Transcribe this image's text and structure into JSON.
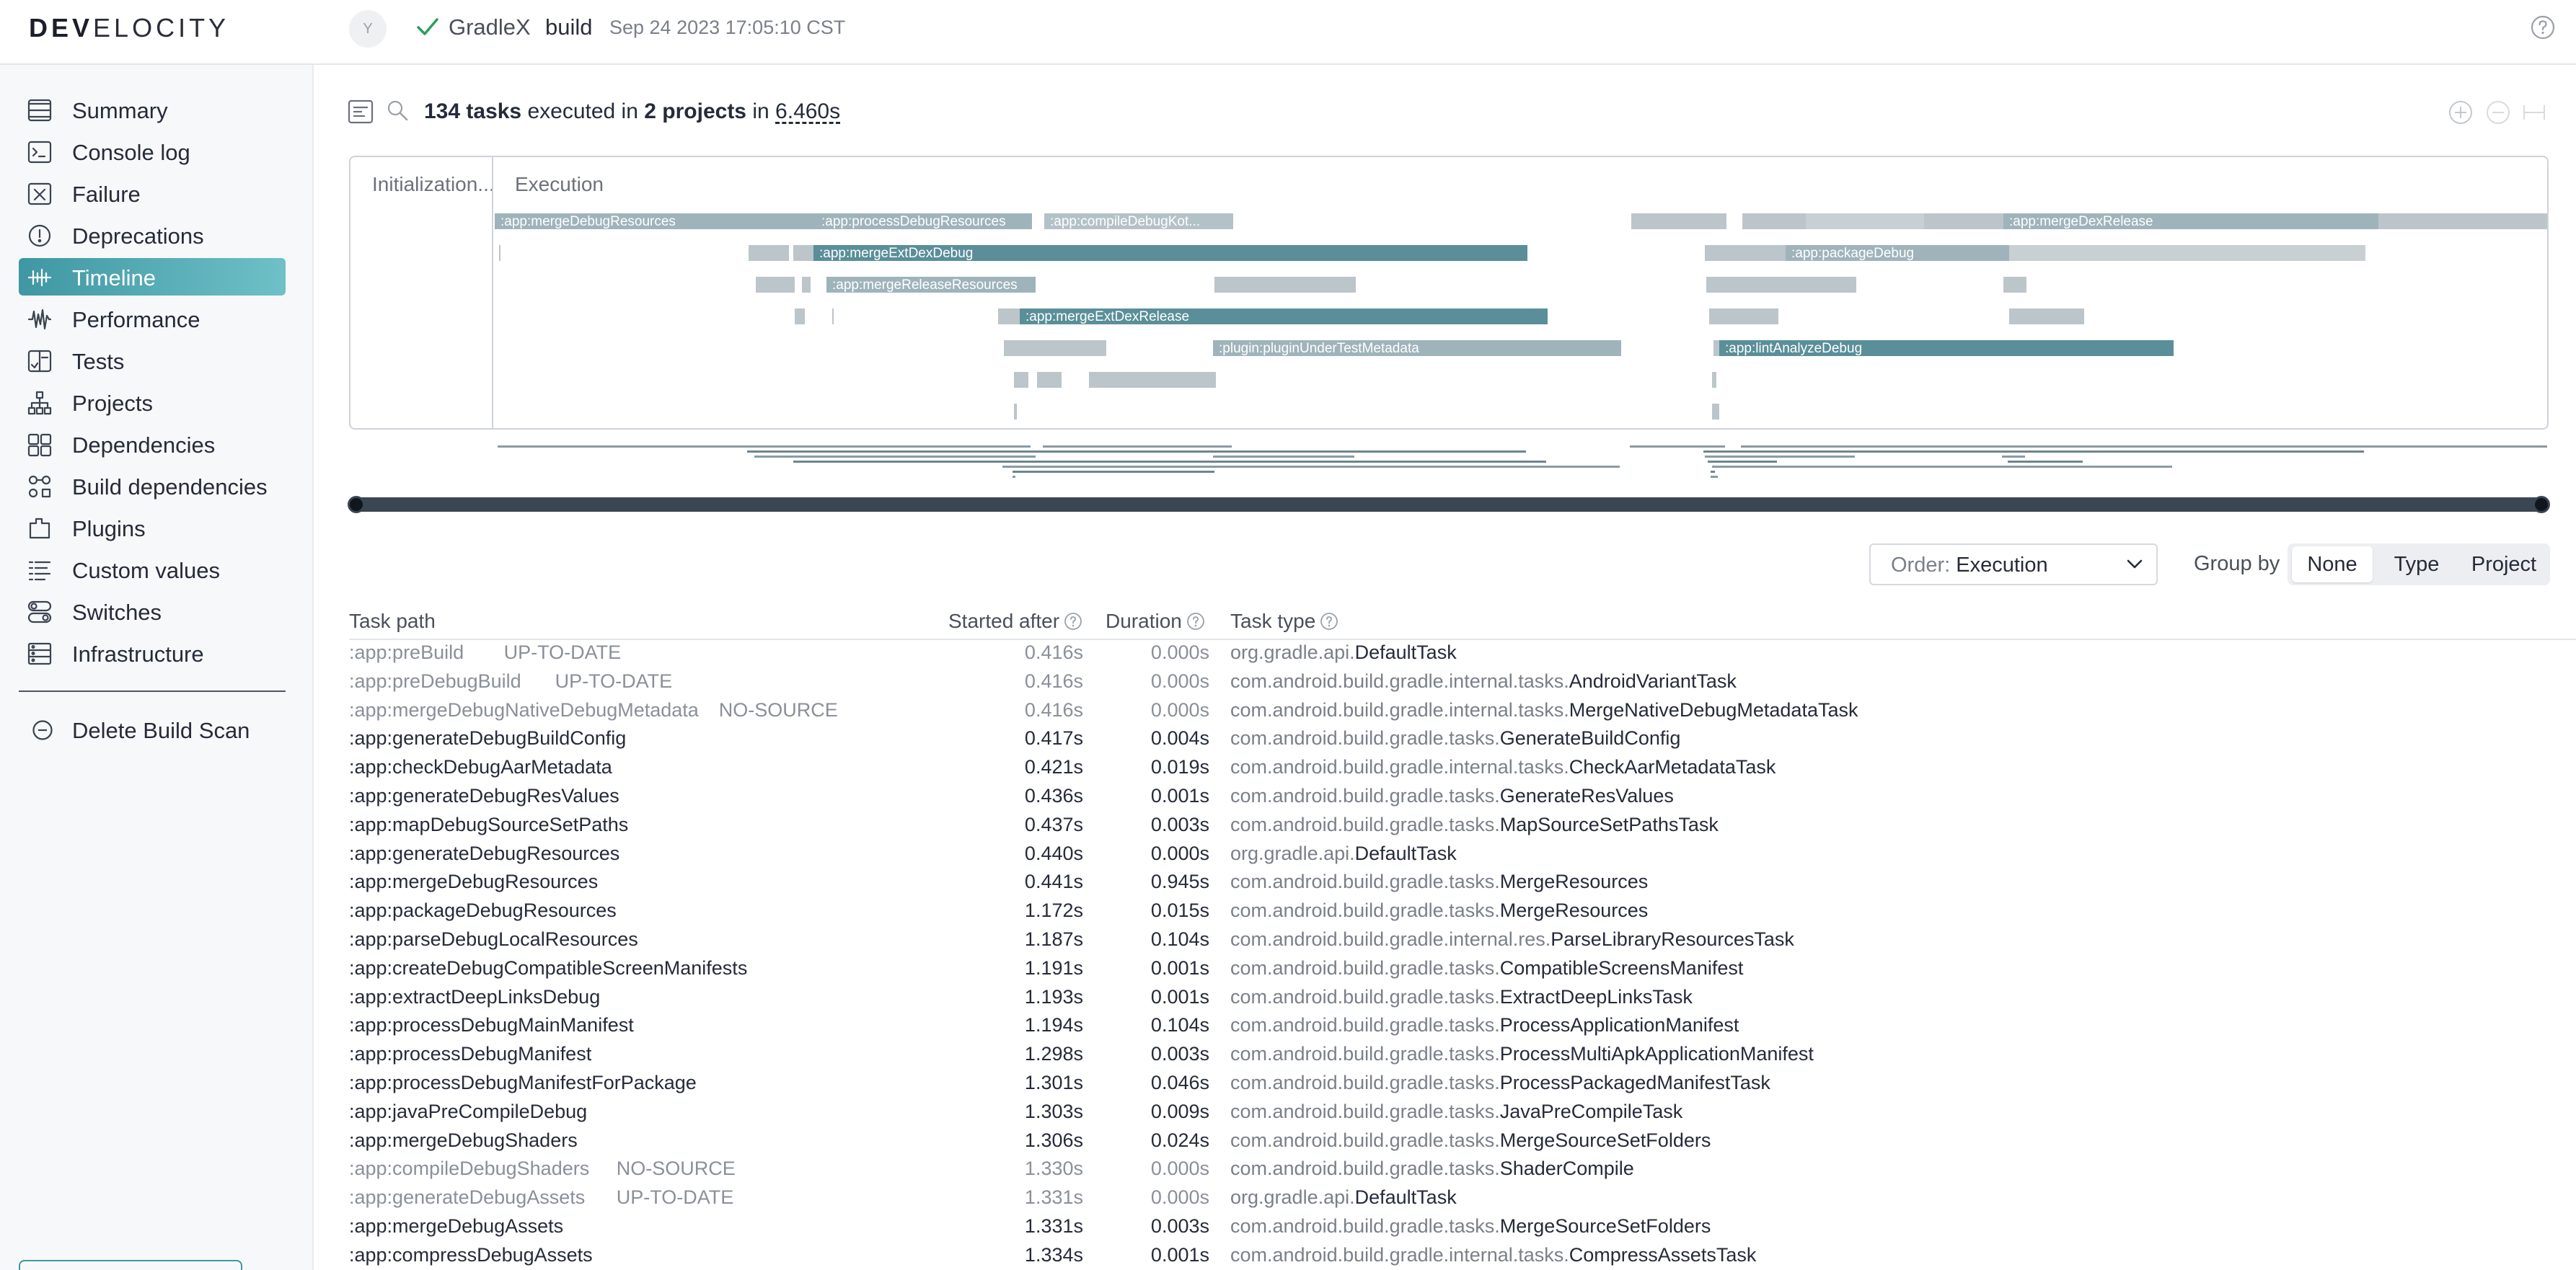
{
  "app": {
    "logo_bold": "DEV",
    "logo_rest": "ELOCITY",
    "avatar_letter": "Y",
    "project": "GradleX",
    "task": "build",
    "timestamp": "Sep 24 2023 17:05:10 CST"
  },
  "colors": {
    "accent": "#3f97a3",
    "accent_light": "#6fc0c7",
    "bar_highlight": "#5a8f99",
    "bar_muted": "#bcc5ca",
    "success": "#2e9e5b"
  },
  "sidebar": {
    "items": [
      {
        "label": "Summary",
        "icon": "summary-lines-icon",
        "active": false
      },
      {
        "label": "Console log",
        "icon": "console-icon",
        "active": false
      },
      {
        "label": "Failure",
        "icon": "failure-x-icon",
        "active": false
      },
      {
        "label": "Deprecations",
        "icon": "deprecation-alert-icon",
        "active": false
      },
      {
        "label": "Timeline",
        "icon": "timeline-icon",
        "active": true
      },
      {
        "label": "Performance",
        "icon": "performance-wave-icon",
        "active": false
      },
      {
        "label": "Tests",
        "icon": "tests-icon",
        "active": false
      },
      {
        "label": "Projects",
        "icon": "projects-tree-icon",
        "active": false
      },
      {
        "label": "Dependencies",
        "icon": "dependencies-icon",
        "active": false
      },
      {
        "label": "Build dependencies",
        "icon": "build-dependencies-icon",
        "active": false
      },
      {
        "label": "Plugins",
        "icon": "plugins-icon",
        "active": false
      },
      {
        "label": "Custom values",
        "icon": "custom-values-icon",
        "active": false
      },
      {
        "label": "Switches",
        "icon": "switches-icon",
        "active": false
      },
      {
        "label": "Infrastructure",
        "icon": "infrastructure-icon",
        "active": false
      }
    ],
    "delete_label": "Delete Build Scan"
  },
  "summary": {
    "task_count": "134 tasks",
    "executed_in": "executed in",
    "project_count": "2 projects",
    "in": "in",
    "duration": "6.460s"
  },
  "timeline": {
    "init_label": "Initialization...",
    "exec_label": "Execution",
    "labels": [
      ":app:mergeDebugResources",
      ":app:processDebugResources",
      ":app:compileDebugKot...",
      ":app:mergeDexRelease",
      ":app:mergeExtDexDebug",
      ":app:packageDebug",
      ":app:mergeReleaseResources",
      ":app:mergeExtDexRelease",
      ":plugin:pluginUnderTestMetadata",
      ":app:lintAnalyzeDebug"
    ]
  },
  "controls": {
    "order_prefix": "Order:",
    "order_value": "Execution",
    "group_by_label": "Group by",
    "group_options": [
      "None",
      "Type",
      "Project"
    ],
    "group_selected": "None"
  },
  "table": {
    "headers": {
      "path": "Task path",
      "started": "Started after",
      "duration": "Duration",
      "type": "Task type"
    },
    "rows": [
      {
        "path": ":app:preBuild",
        "status": "UP-TO-DATE",
        "start": "0.416s",
        "dur": "0.000s",
        "pkg": "org.gradle.api.",
        "cls": "DefaultTask"
      },
      {
        "path": ":app:preDebugBuild",
        "status": "UP-TO-DATE",
        "start": "0.416s",
        "dur": "0.000s",
        "pkg": "com.android.build.gradle.internal.tasks.",
        "cls": "AndroidVariantTask"
      },
      {
        "path": ":app:mergeDebugNativeDebugMetadata",
        "status": "NO-SOURCE",
        "start": "0.416s",
        "dur": "0.000s",
        "pkg": "com.android.build.gradle.internal.tasks.",
        "cls": "MergeNativeDebugMetadataTask"
      },
      {
        "path": ":app:generateDebugBuildConfig",
        "status": "",
        "start": "0.417s",
        "dur": "0.004s",
        "pkg": "com.android.build.gradle.tasks.",
        "cls": "GenerateBuildConfig"
      },
      {
        "path": ":app:checkDebugAarMetadata",
        "status": "",
        "start": "0.421s",
        "dur": "0.019s",
        "pkg": "com.android.build.gradle.internal.tasks.",
        "cls": "CheckAarMetadataTask"
      },
      {
        "path": ":app:generateDebugResValues",
        "status": "",
        "start": "0.436s",
        "dur": "0.001s",
        "pkg": "com.android.build.gradle.tasks.",
        "cls": "GenerateResValues"
      },
      {
        "path": ":app:mapDebugSourceSetPaths",
        "status": "",
        "start": "0.437s",
        "dur": "0.003s",
        "pkg": "com.android.build.gradle.tasks.",
        "cls": "MapSourceSetPathsTask"
      },
      {
        "path": ":app:generateDebugResources",
        "status": "",
        "start": "0.440s",
        "dur": "0.000s",
        "pkg": "org.gradle.api.",
        "cls": "DefaultTask"
      },
      {
        "path": ":app:mergeDebugResources",
        "status": "",
        "start": "0.441s",
        "dur": "0.945s",
        "pkg": "com.android.build.gradle.tasks.",
        "cls": "MergeResources"
      },
      {
        "path": ":app:packageDebugResources",
        "status": "",
        "start": "1.172s",
        "dur": "0.015s",
        "pkg": "com.android.build.gradle.tasks.",
        "cls": "MergeResources"
      },
      {
        "path": ":app:parseDebugLocalResources",
        "status": "",
        "start": "1.187s",
        "dur": "0.104s",
        "pkg": "com.android.build.gradle.internal.res.",
        "cls": "ParseLibraryResourcesTask"
      },
      {
        "path": ":app:createDebugCompatibleScreenManifests",
        "status": "",
        "start": "1.191s",
        "dur": "0.001s",
        "pkg": "com.android.build.gradle.tasks.",
        "cls": "CompatibleScreensManifest"
      },
      {
        "path": ":app:extractDeepLinksDebug",
        "status": "",
        "start": "1.193s",
        "dur": "0.001s",
        "pkg": "com.android.build.gradle.tasks.",
        "cls": "ExtractDeepLinksTask"
      },
      {
        "path": ":app:processDebugMainManifest",
        "status": "",
        "start": "1.194s",
        "dur": "0.104s",
        "pkg": "com.android.build.gradle.tasks.",
        "cls": "ProcessApplicationManifest"
      },
      {
        "path": ":app:processDebugManifest",
        "status": "",
        "start": "1.298s",
        "dur": "0.003s",
        "pkg": "com.android.build.gradle.tasks.",
        "cls": "ProcessMultiApkApplicationManifest"
      },
      {
        "path": ":app:processDebugManifestForPackage",
        "status": "",
        "start": "1.301s",
        "dur": "0.046s",
        "pkg": "com.android.build.gradle.tasks.",
        "cls": "ProcessPackagedManifestTask"
      },
      {
        "path": ":app:javaPreCompileDebug",
        "status": "",
        "start": "1.303s",
        "dur": "0.009s",
        "pkg": "com.android.build.gradle.tasks.",
        "cls": "JavaPreCompileTask"
      },
      {
        "path": ":app:mergeDebugShaders",
        "status": "",
        "start": "1.306s",
        "dur": "0.024s",
        "pkg": "com.android.build.gradle.tasks.",
        "cls": "MergeSourceSetFolders"
      },
      {
        "path": ":app:compileDebugShaders",
        "status": "NO-SOURCE",
        "start": "1.330s",
        "dur": "0.000s",
        "pkg": "com.android.build.gradle.tasks.",
        "cls": "ShaderCompile"
      },
      {
        "path": ":app:generateDebugAssets",
        "status": "UP-TO-DATE",
        "start": "1.331s",
        "dur": "0.000s",
        "pkg": "org.gradle.api.",
        "cls": "DefaultTask"
      },
      {
        "path": ":app:mergeDebugAssets",
        "status": "",
        "start": "1.331s",
        "dur": "0.003s",
        "pkg": "com.android.build.gradle.tasks.",
        "cls": "MergeSourceSetFolders"
      },
      {
        "path": ":app:compressDebugAssets",
        "status": "",
        "start": "1.334s",
        "dur": "0.001s",
        "pkg": "com.android.build.gradle.internal.tasks.",
        "cls": "CompressAssetsTask"
      }
    ]
  }
}
